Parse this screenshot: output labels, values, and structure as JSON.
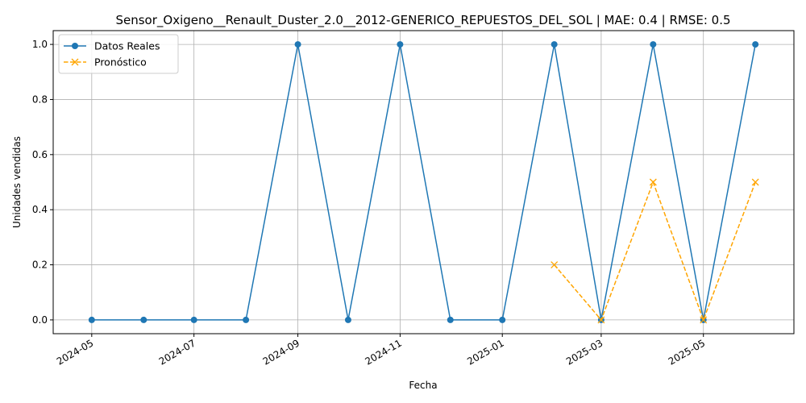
{
  "chart_data": {
    "type": "line",
    "title": "Sensor_Oxigeno__Renault_Duster_2.0__2012-GENERICO_REPUESTOS_DEL_SOL | MAE: 0.4 | RMSE: 0.5",
    "xlabel": "Fecha",
    "ylabel": "Unidades vendidas",
    "x_is_date": true,
    "xlim": [
      "2024-04-08",
      "2025-06-24"
    ],
    "ylim": [
      -0.05,
      1.05
    ],
    "x_ticks": [
      "2024-05",
      "2024-07",
      "2024-09",
      "2024-11",
      "2025-01",
      "2025-03",
      "2025-05"
    ],
    "x_tick_values": [
      "2024-05-01",
      "2024-07-01",
      "2024-09-01",
      "2024-11-01",
      "2025-01-01",
      "2025-03-01",
      "2025-05-01"
    ],
    "y_ticks": [
      "0.0",
      "0.2",
      "0.4",
      "0.6",
      "0.8",
      "1.0"
    ],
    "y_tick_values": [
      0,
      0.2,
      0.4,
      0.6,
      0.8,
      1.0
    ],
    "grid": true,
    "legend_position": "top-left",
    "series": [
      {
        "name": "Datos Reales",
        "color": "#1f77b4",
        "style": "solid",
        "marker": "circle",
        "x": [
          "2024-05-01",
          "2024-06-01",
          "2024-07-01",
          "2024-08-01",
          "2024-09-01",
          "2024-10-01",
          "2024-11-01",
          "2024-12-01",
          "2025-01-01",
          "2025-02-01",
          "2025-03-01",
          "2025-04-01",
          "2025-05-01",
          "2025-06-01"
        ],
        "values": [
          0,
          0,
          0,
          0,
          1,
          0,
          1,
          0,
          0,
          1,
          0,
          1,
          0,
          1
        ]
      },
      {
        "name": "Pronóstico",
        "color": "#ffa500",
        "style": "dashed",
        "marker": "x",
        "x": [
          "2025-02-01",
          "2025-03-01",
          "2025-04-01",
          "2025-05-01",
          "2025-06-01"
        ],
        "values": [
          0.2,
          0,
          0.5,
          0,
          0.5
        ]
      }
    ]
  }
}
